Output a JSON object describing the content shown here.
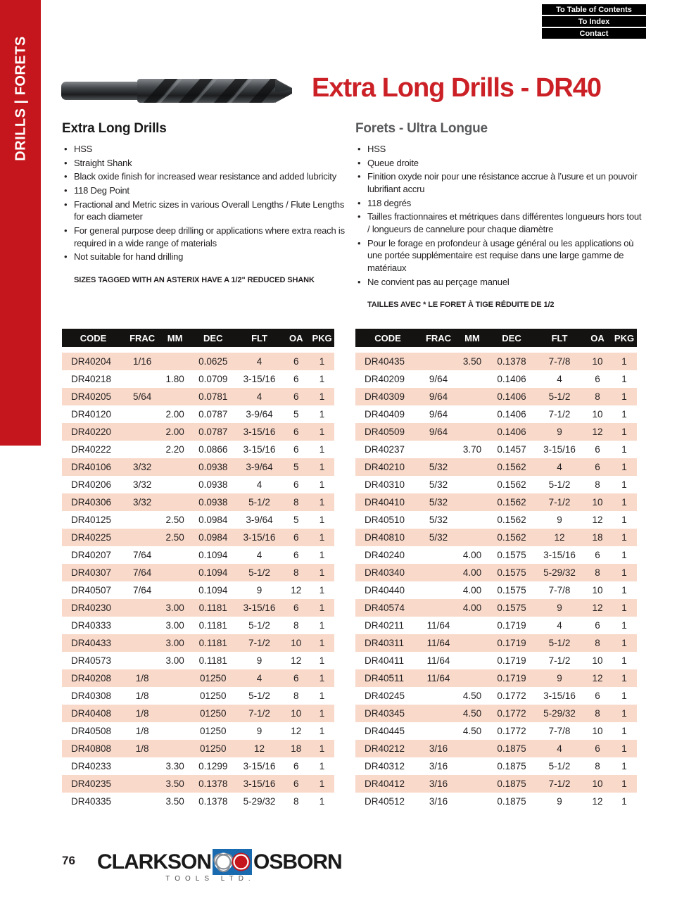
{
  "sidebar": {
    "label": "DRILLS | FORETS"
  },
  "nav": {
    "buttons": [
      "To Table of Contents",
      "To Index",
      "Contact"
    ]
  },
  "header": {
    "title": "Extra Long Drills - DR40"
  },
  "sections": {
    "english": {
      "heading": "Extra Long Drills",
      "bullets": [
        "HSS",
        "Straight Shank",
        "Black oxide finish for increased wear resistance and added lubricity",
        "118 Deg Point",
        "Fractional and Metric sizes in various Overall Lengths / Flute Lengths for each diameter",
        "For general purpose deep drilling or applications where extra reach is required in a wide range of materials",
        "Not suitable for hand drilling"
      ],
      "note": "SIZES TAGGED WITH AN ASTERIX HAVE A 1/2\" REDUCED SHANK"
    },
    "french": {
      "heading": "Forets - Ultra Longue",
      "bullets": [
        "HSS",
        "Queue droite",
        "Finition oxyde noir pour une résistance accrue à l’usure et un pouvoir lubrifiant accru",
        "118 degrés",
        "Tailles fractionnaires et métriques dans différentes longueurs hors tout / longueurs de cannelure pour chaque diamètre",
        "Pour le forage en profondeur à usage général ou les applications où une portée supplémentaire est requise dans une large gamme de matériaux",
        "Ne convient pas au perçage manuel"
      ],
      "note": "TAILLES AVEC * LE FORET À TIGE RÉDUITE DE 1/2"
    }
  },
  "tables": {
    "headers": [
      "CODE",
      "FRAC",
      "MM",
      "DEC",
      "FLT",
      "OA",
      "PKG"
    ],
    "left": {
      "rows": [
        [
          "DR40204",
          "1/16",
          "",
          "0.0625",
          "4",
          "6",
          "1"
        ],
        [
          "DR40218",
          "",
          "1.80",
          "0.0709",
          "3-15/16",
          "6",
          "1"
        ],
        [
          "DR40205",
          "5/64",
          "",
          "0.0781",
          "4",
          "6",
          "1"
        ],
        [
          "DR40120",
          "",
          "2.00",
          "0.0787",
          "3-9/64",
          "5",
          "1"
        ],
        [
          "DR40220",
          "",
          "2.00",
          "0.0787",
          "3-15/16",
          "6",
          "1"
        ],
        [
          "DR40222",
          "",
          "2.20",
          "0.0866",
          "3-15/16",
          "6",
          "1"
        ],
        [
          "DR40106",
          "3/32",
          "",
          "0.0938",
          "3-9/64",
          "5",
          "1"
        ],
        [
          "DR40206",
          "3/32",
          "",
          "0.0938",
          "4",
          "6",
          "1"
        ],
        [
          "DR40306",
          "3/32",
          "",
          "0.0938",
          "5-1/2",
          "8",
          "1"
        ],
        [
          "DR40125",
          "",
          "2.50",
          "0.0984",
          "3-9/64",
          "5",
          "1"
        ],
        [
          "DR40225",
          "",
          "2.50",
          "0.0984",
          "3-15/16",
          "6",
          "1"
        ],
        [
          "DR40207",
          "7/64",
          "",
          "0.1094",
          "4",
          "6",
          "1"
        ],
        [
          "DR40307",
          "7/64",
          "",
          "0.1094",
          "5-1/2",
          "8",
          "1"
        ],
        [
          "DR40507",
          "7/64",
          "",
          "0.1094",
          "9",
          "12",
          "1"
        ],
        [
          "DR40230",
          "",
          "3.00",
          "0.1181",
          "3-15/16",
          "6",
          "1"
        ],
        [
          "DR40333",
          "",
          "3.00",
          "0.1181",
          "5-1/2",
          "8",
          "1"
        ],
        [
          "DR40433",
          "",
          "3.00",
          "0.1181",
          "7-1/2",
          "10",
          "1"
        ],
        [
          "DR40573",
          "",
          "3.00",
          "0.1181",
          "9",
          "12",
          "1"
        ],
        [
          "DR40208",
          "1/8",
          "",
          "01250",
          "4",
          "6",
          "1"
        ],
        [
          "DR40308",
          "1/8",
          "",
          "01250",
          "5-1/2",
          "8",
          "1"
        ],
        [
          "DR40408",
          "1/8",
          "",
          "01250",
          "7-1/2",
          "10",
          "1"
        ],
        [
          "DR40508",
          "1/8",
          "",
          "01250",
          "9",
          "12",
          "1"
        ],
        [
          "DR40808",
          "1/8",
          "",
          "01250",
          "12",
          "18",
          "1"
        ],
        [
          "DR40233",
          "",
          "3.30",
          "0.1299",
          "3-15/16",
          "6",
          "1"
        ],
        [
          "DR40235",
          "",
          "3.50",
          "0.1378",
          "3-15/16",
          "6",
          "1"
        ],
        [
          "DR40335",
          "",
          "3.50",
          "0.1378",
          "5-29/32",
          "8",
          "1"
        ]
      ]
    },
    "right": {
      "rows": [
        [
          "DR40435",
          "",
          "3.50",
          "0.1378",
          "7-7/8",
          "10",
          "1"
        ],
        [
          "DR40209",
          "9/64",
          "",
          "0.1406",
          "4",
          "6",
          "1"
        ],
        [
          "DR40309",
          "9/64",
          "",
          "0.1406",
          "5-1/2",
          "8",
          "1"
        ],
        [
          "DR40409",
          "9/64",
          "",
          "0.1406",
          "7-1/2",
          "10",
          "1"
        ],
        [
          "DR40509",
          "9/64",
          "",
          "0.1406",
          "9",
          "12",
          "1"
        ],
        [
          "DR40237",
          "",
          "3.70",
          "0.1457",
          "3-15/16",
          "6",
          "1"
        ],
        [
          "DR40210",
          "5/32",
          "",
          "0.1562",
          "4",
          "6",
          "1"
        ],
        [
          "DR40310",
          "5/32",
          "",
          "0.1562",
          "5-1/2",
          "8",
          "1"
        ],
        [
          "DR40410",
          "5/32",
          "",
          "0.1562",
          "7-1/2",
          "10",
          "1"
        ],
        [
          "DR40510",
          "5/32",
          "",
          "0.1562",
          "9",
          "12",
          "1"
        ],
        [
          "DR40810",
          "5/32",
          "",
          "0.1562",
          "12",
          "18",
          "1"
        ],
        [
          "DR40240",
          "",
          "4.00",
          "0.1575",
          "3-15/16",
          "6",
          "1"
        ],
        [
          "DR40340",
          "",
          "4.00",
          "0.1575",
          "5-29/32",
          "8",
          "1"
        ],
        [
          "DR40440",
          "",
          "4.00",
          "0.1575",
          "7-7/8",
          "10",
          "1"
        ],
        [
          "DR40574",
          "",
          "4.00",
          "0.1575",
          "9",
          "12",
          "1"
        ],
        [
          "DR40211",
          "11/64",
          "",
          "0.1719",
          "4",
          "6",
          "1"
        ],
        [
          "DR40311",
          "11/64",
          "",
          "0.1719",
          "5-1/2",
          "8",
          "1"
        ],
        [
          "DR40411",
          "11/64",
          "",
          "0.1719",
          "7-1/2",
          "10",
          "1"
        ],
        [
          "DR40511",
          "11/64",
          "",
          "0.1719",
          "9",
          "12",
          "1"
        ],
        [
          "DR40245",
          "",
          "4.50",
          "0.1772",
          "3-15/16",
          "6",
          "1"
        ],
        [
          "DR40345",
          "",
          "4.50",
          "0.1772",
          "5-29/32",
          "8",
          "1"
        ],
        [
          "DR40445",
          "",
          "4.50",
          "0.1772",
          "7-7/8",
          "10",
          "1"
        ],
        [
          "DR40212",
          "3/16",
          "",
          "0.1875",
          "4",
          "6",
          "1"
        ],
        [
          "DR40312",
          "3/16",
          "",
          "0.1875",
          "5-1/2",
          "8",
          "1"
        ],
        [
          "DR40412",
          "3/16",
          "",
          "0.1875",
          "7-1/2",
          "10",
          "1"
        ],
        [
          "DR40512",
          "3/16",
          "",
          "0.1875",
          "9",
          "12",
          "1"
        ]
      ]
    }
  },
  "footer": {
    "page_number": "76",
    "brand_left": "CLARKSON",
    "brand_right": "OSBORN",
    "brand_sub": "TOOLS LTD."
  },
  "colors": {
    "brand_red": "#c4161c",
    "title_red": "#cb2026",
    "row_pink": "#f8d9ca",
    "table_header_black": "#151312",
    "logo_blue": "#1a6ab0",
    "french_heading_gray": "#58595b"
  }
}
